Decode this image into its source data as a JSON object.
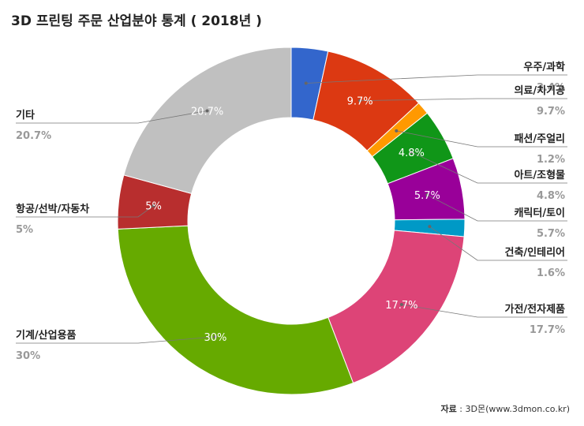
{
  "chart_data": {
    "type": "pie",
    "title": "3D 프린팅 주문 산업분야 통계 ( 2018년 )",
    "donut": true,
    "slices": [
      {
        "label": "우주/과학",
        "value": 3.4,
        "value_label": "3.4%",
        "inner_label": "",
        "color": "#3366cc"
      },
      {
        "label": "의료/치기공",
        "value": 9.7,
        "value_label": "9.7%",
        "inner_label": "9.7%",
        "color": "#dc3912"
      },
      {
        "label": "패션/주얼리",
        "value": 1.2,
        "value_label": "1.2%",
        "inner_label": "",
        "color": "#ff9900"
      },
      {
        "label": "아트/조형물",
        "value": 4.8,
        "value_label": "4.8%",
        "inner_label": "4.8%",
        "color": "#109618"
      },
      {
        "label": "캐릭터/토이",
        "value": 5.7,
        "value_label": "5.7%",
        "inner_label": "5.7%",
        "color": "#990099"
      },
      {
        "label": "건축/인테리어",
        "value": 1.6,
        "value_label": "1.6%",
        "inner_label": "",
        "color": "#0099c6"
      },
      {
        "label": "가전/전자제품",
        "value": 17.7,
        "value_label": "17.7%",
        "inner_label": "17.7%",
        "color": "#dd4477"
      },
      {
        "label": "기계/산업용품",
        "value": 30,
        "value_label": "30%",
        "inner_label": "30%",
        "color": "#66aa00"
      },
      {
        "label": "항공/선박/자동차",
        "value": 5,
        "value_label": "5%",
        "inner_label": "5%",
        "color": "#b82e2e"
      },
      {
        "label": "기타",
        "value": 20.7,
        "value_label": "20.7%",
        "inner_label": "20.7%",
        "color": "#c0c0c0"
      }
    ]
  },
  "source": {
    "label": "자료",
    "text": " : 3D몬(www.3dmon.co.kr)"
  }
}
